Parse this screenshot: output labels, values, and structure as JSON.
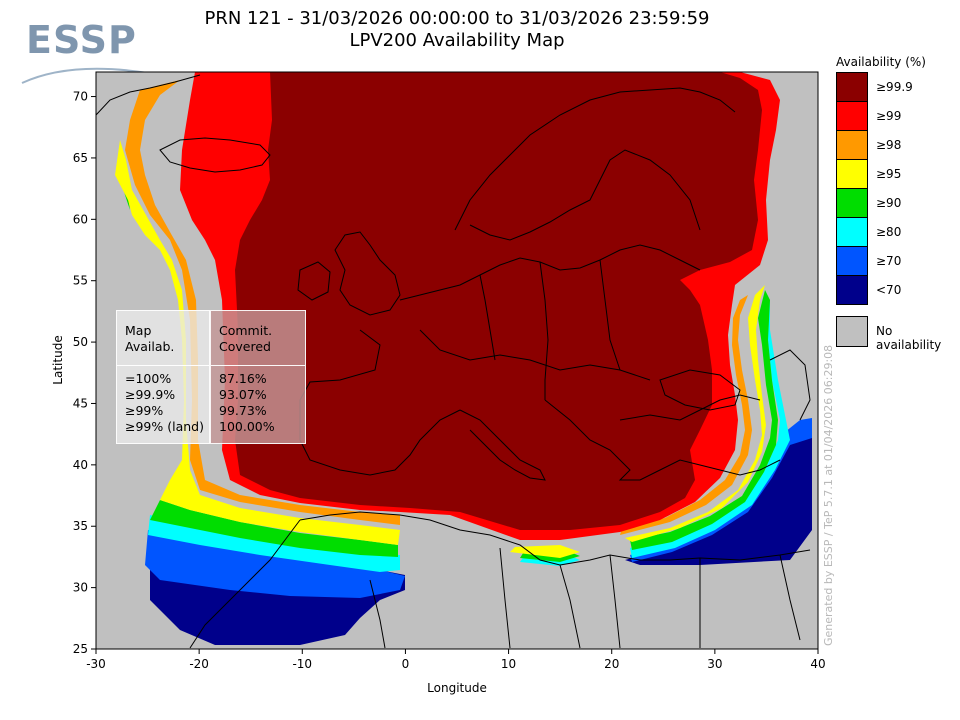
{
  "logo": {
    "text": "ESSP"
  },
  "title": {
    "line1": "PRN 121 - 31/03/2026 00:00:00 to 31/03/2026 23:59:59",
    "line2": "LPV200 Availability Map"
  },
  "axes": {
    "xlabel": "Longitude",
    "ylabel": "Latitude",
    "xlim": [
      -30,
      40
    ],
    "ylim": [
      25,
      72
    ],
    "xticks": [
      -30,
      -20,
      -10,
      0,
      10,
      20,
      30,
      40
    ],
    "yticks": [
      25,
      30,
      35,
      40,
      45,
      50,
      55,
      60,
      65,
      70
    ]
  },
  "stats": {
    "col1_header": [
      "Map",
      "Availab."
    ],
    "col2_header": [
      "Commit.",
      "Covered"
    ],
    "rows": [
      {
        "label": "=100%",
        "value": "87.16%"
      },
      {
        "label": "≥99.9%",
        "value": "93.07%"
      },
      {
        "label": "≥99%",
        "value": "99.73%"
      },
      {
        "label": "≥99% (land)",
        "value": "100.00%"
      }
    ]
  },
  "legend": {
    "title": "Availability (%)",
    "items": [
      {
        "label": "≥99.9",
        "color": "#8b0000"
      },
      {
        "label": "≥99",
        "color": "#ff0000"
      },
      {
        "label": "≥98",
        "color": "#ff9900"
      },
      {
        "label": "≥95",
        "color": "#ffff00"
      },
      {
        "label": "≥90",
        "color": "#00dd00"
      },
      {
        "label": "≥80",
        "color": "#00ffff"
      },
      {
        "label": "≥70",
        "color": "#0055ff"
      },
      {
        "label": "<70",
        "color": "#00008b"
      }
    ],
    "no_availability": {
      "label": "No availability",
      "color": "#c0c0c0"
    }
  },
  "credit": "Generated by ESSP / TeP 5.7.1 at 01/04/2026 06:29:08"
}
